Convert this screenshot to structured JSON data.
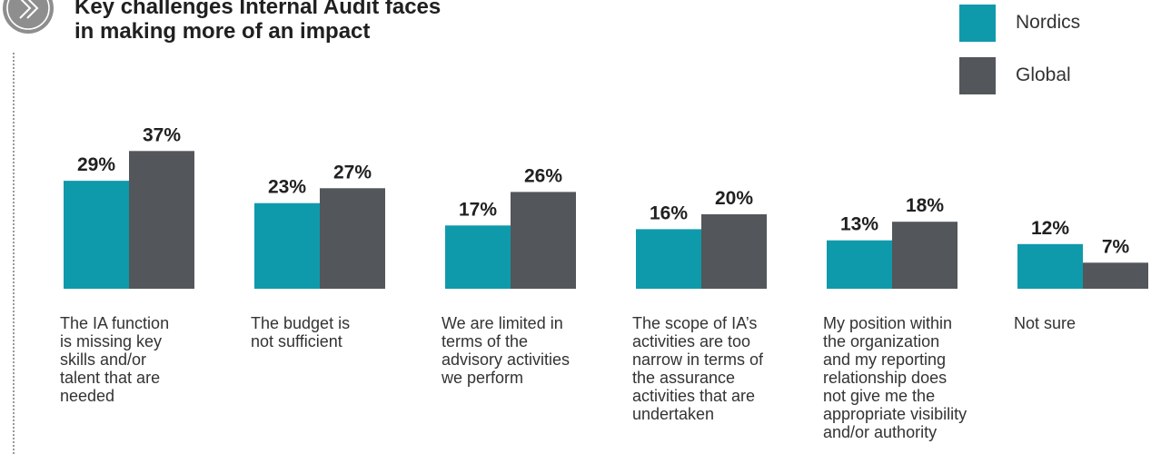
{
  "header": {
    "title_lines": [
      "Key challenges Internal Audit faces",
      "in making more of an impact"
    ],
    "icon": "double-chevron-right-icon"
  },
  "legend": [
    {
      "label": "Nordics",
      "color": "#0f9aab"
    },
    {
      "label": "Global",
      "color": "#53565a"
    }
  ],
  "chart_data": {
    "type": "bar",
    "title": "Key challenges Internal Audit faces in making more of an impact",
    "categories": [
      [
        "The IA function",
        "is missing key",
        "skills and/or",
        "talent that are",
        "needed"
      ],
      [
        "The budget is",
        "not sufficient"
      ],
      [
        "We are limited in",
        "terms of the",
        "advisory activities",
        "we perform"
      ],
      [
        "The scope of IA’s",
        "activities are too",
        "narrow in terms of",
        "the assurance",
        "activities that are",
        "undertaken"
      ],
      [
        "My position within",
        "the organization",
        "and my reporting",
        "relationship does",
        "not give me the",
        "appropriate visibility",
        "and/or authority"
      ],
      [
        "Not sure"
      ]
    ],
    "series": [
      {
        "name": "Nordics",
        "color": "#0f9aab",
        "values": [
          29,
          23,
          17,
          16,
          13,
          12
        ],
        "labels": [
          "29%",
          "23%",
          "17%",
          "16%",
          "13%",
          "12%"
        ]
      },
      {
        "name": "Global",
        "color": "#53565a",
        "values": [
          37,
          27,
          26,
          20,
          18,
          7
        ],
        "labels": [
          "37%",
          "27%",
          "26%",
          "20%",
          "18%",
          "7%"
        ]
      }
    ],
    "unit": "%",
    "xlabel": "",
    "ylabel": "",
    "grid": false,
    "legend_position": "top-right"
  }
}
